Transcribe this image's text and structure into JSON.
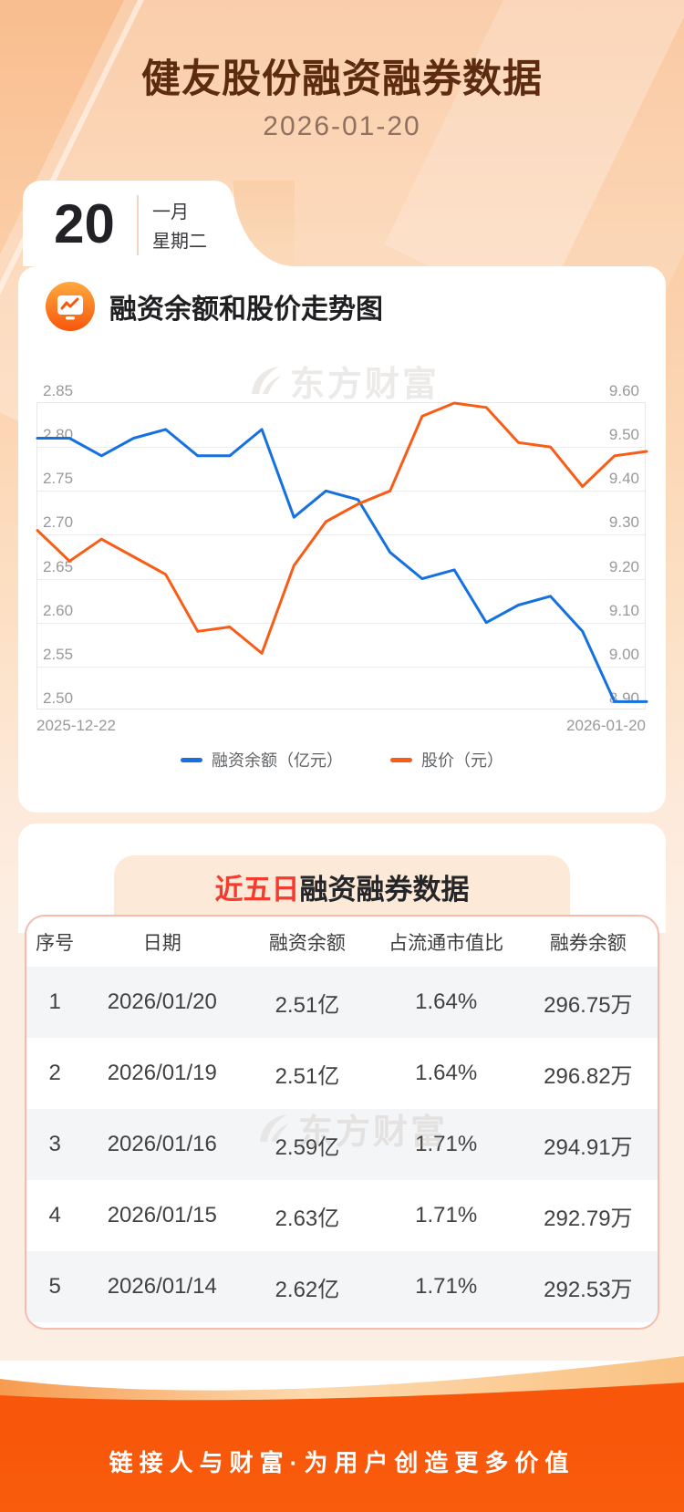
{
  "header": {
    "title": "健友股份融资融券数据",
    "date": "2026-01-20"
  },
  "calendar": {
    "day": "20",
    "month": "一月",
    "weekday": "星期二"
  },
  "chart_section": {
    "title": "融资余额和股价走势图"
  },
  "watermark": {
    "text": "东方财富"
  },
  "chart_data": {
    "type": "line",
    "title": "融资余额和股价走势图",
    "x_axis_labels": [
      "2025-12-22",
      "2026-01-20"
    ],
    "left_axis": {
      "min": 2.5,
      "max": 2.85,
      "step": 0.05,
      "ticks": [
        "2.85",
        "2.80",
        "2.75",
        "2.70",
        "2.65",
        "2.60",
        "2.55",
        "2.50"
      ]
    },
    "right_axis": {
      "min": 8.9,
      "max": 9.6,
      "step": 0.1,
      "ticks": [
        "9.60",
        "9.50",
        "9.40",
        "9.30",
        "9.20",
        "9.10",
        "9.00",
        "8.90"
      ]
    },
    "grid": true,
    "legend_position": "bottom",
    "series": [
      {
        "name": "融资余额（亿元）",
        "axis": "left",
        "color": "#1671e0",
        "values": [
          2.81,
          2.81,
          2.79,
          2.81,
          2.82,
          2.79,
          2.79,
          2.82,
          2.72,
          2.75,
          2.74,
          2.68,
          2.65,
          2.66,
          2.6,
          2.62,
          2.63,
          2.59,
          2.51,
          2.51
        ]
      },
      {
        "name": "股价（元）",
        "axis": "right",
        "color": "#f95c17",
        "values": [
          9.31,
          9.24,
          9.29,
          9.25,
          9.21,
          9.08,
          9.09,
          9.03,
          9.23,
          9.33,
          9.37,
          9.4,
          9.57,
          9.6,
          9.59,
          9.51,
          9.5,
          9.41,
          9.48,
          9.49
        ]
      }
    ]
  },
  "table_section": {
    "title_highlight": "近五日",
    "title_rest": "融资融券数据",
    "columns": [
      "序号",
      "日期",
      "融资余额",
      "占流通市值比",
      "融券余额"
    ],
    "rows": [
      [
        "1",
        "2026/01/20",
        "2.51亿",
        "1.64%",
        "296.75万"
      ],
      [
        "2",
        "2026/01/19",
        "2.51亿",
        "1.64%",
        "296.82万"
      ],
      [
        "3",
        "2026/01/16",
        "2.59亿",
        "1.71%",
        "294.91万"
      ],
      [
        "4",
        "2026/01/15",
        "2.63亿",
        "1.71%",
        "292.79万"
      ],
      [
        "5",
        "2026/01/14",
        "2.62亿",
        "1.71%",
        "292.53万"
      ]
    ]
  },
  "footer": {
    "slogan": "链接人与财富·为用户创造更多价值"
  },
  "colors": {
    "header_bg_top": "#f9bd8e",
    "header_bg_bottom": "#fdeee3",
    "title_text": "#5d2c10",
    "date_text": "#90705f",
    "line_blue": "#1671e0",
    "line_orange": "#f95c17",
    "table_border_pink": "#f6bbad",
    "row_tint": "#f4f5f7",
    "title_box_bg": "#fce9d8",
    "title_red": "#f53a2e",
    "footer_orange": "#f8560a"
  }
}
